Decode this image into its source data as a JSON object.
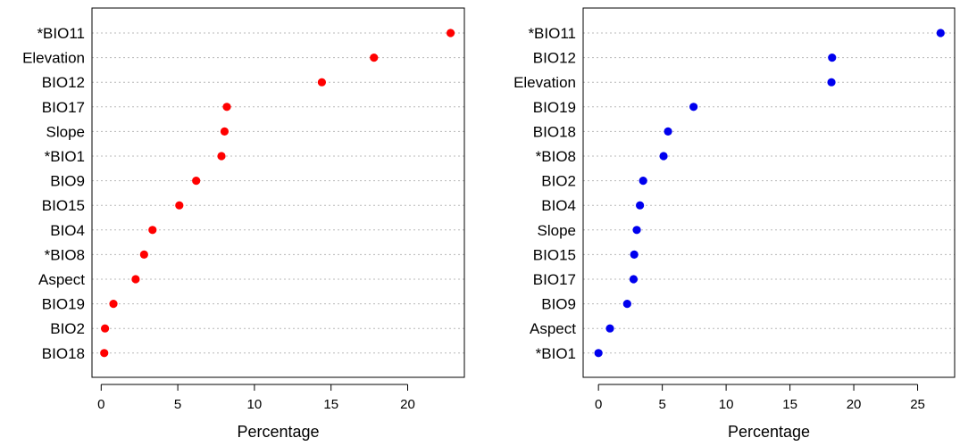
{
  "chart_data": [
    {
      "type": "scatter",
      "subtype": "dot-chart",
      "xlabel": "Percentage",
      "xlim": [
        -0.6,
        23.7
      ],
      "xticks": [
        0,
        5,
        10,
        15,
        20
      ],
      "grid": true,
      "color": "#ff0000",
      "categories": [
        "*BIO11",
        "Elevation",
        "BIO12",
        "BIO17",
        "Slope",
        "*BIO1",
        "BIO9",
        "BIO15",
        "BIO4",
        "*BIO8",
        "Aspect",
        "BIO19",
        "BIO2",
        "BIO18"
      ],
      "values": [
        22.8,
        17.8,
        14.4,
        8.2,
        8.05,
        7.85,
        6.2,
        5.1,
        3.35,
        2.8,
        2.25,
        0.8,
        0.25,
        0.2
      ]
    },
    {
      "type": "scatter",
      "subtype": "dot-chart",
      "xlabel": "Percentage",
      "xlim": [
        -1.2,
        27.9
      ],
      "xticks": [
        0,
        5,
        10,
        15,
        20,
        25
      ],
      "grid": true,
      "color": "#0000ee",
      "categories": [
        "*BIO11",
        "BIO12",
        "Elevation",
        "BIO19",
        "BIO18",
        "*BIO8",
        "BIO2",
        "BIO4",
        "Slope",
        "BIO15",
        "BIO17",
        "BIO9",
        "Aspect",
        "*BIO1"
      ],
      "values": [
        26.8,
        18.3,
        18.25,
        7.45,
        5.45,
        5.1,
        3.5,
        3.25,
        3.0,
        2.8,
        2.75,
        2.25,
        0.9,
        0.0
      ]
    }
  ]
}
